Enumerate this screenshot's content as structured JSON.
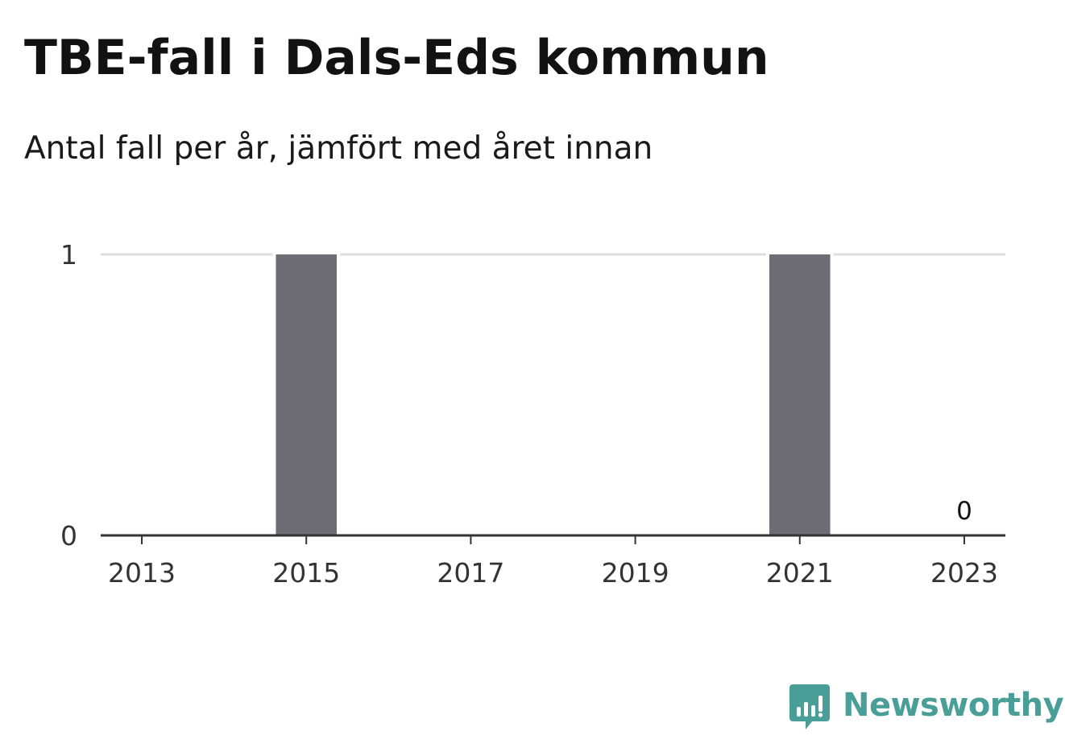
{
  "title": "TBE-fall i Dals-Eds kommun",
  "subtitle": "Antal fall per år, jämfört med året innan",
  "brand": {
    "name": "Newsworthy",
    "color": "#4a9e98",
    "icon": "bar-chart-speech-bubble-icon"
  },
  "chart_data": {
    "type": "bar",
    "categories": [
      "2013",
      "2014",
      "2015",
      "2016",
      "2017",
      "2018",
      "2019",
      "2020",
      "2021",
      "2022",
      "2023"
    ],
    "values": [
      0,
      0,
      1,
      0,
      0,
      0,
      0,
      0,
      1,
      0,
      0
    ],
    "x_tick_labels": [
      "2013",
      "2015",
      "2017",
      "2019",
      "2021",
      "2023"
    ],
    "y_tick_labels": [
      "0",
      "1"
    ],
    "ylim": [
      0,
      1
    ],
    "data_labels": [
      {
        "category": "2023",
        "text": "0"
      }
    ],
    "grid": true,
    "bar_color": "#6e6d74",
    "grid_color": "#dddddd",
    "axis_color": "#333333"
  }
}
